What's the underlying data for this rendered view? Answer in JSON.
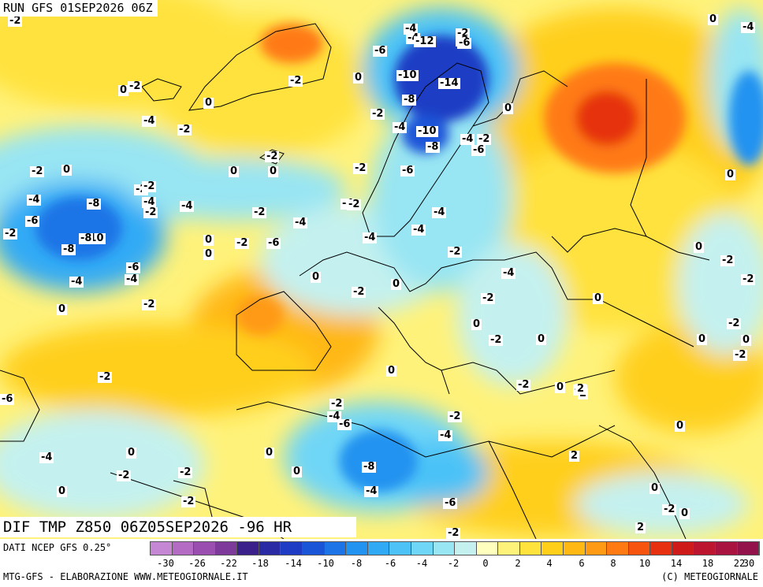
{
  "header": {
    "run_title": "RUN GFS 01SEP2026 06Z",
    "parameter_title": "DIF TMP Z850 06Z05SEP2026 -96 HR"
  },
  "footer": {
    "source": "DATI NCEP GFS 0.25°",
    "credit": "MTG-GFS - ELABORAZIONE WWW.METEOGIORNALE.IT",
    "copyright": "(C) METEOGIORNALE"
  },
  "legend": {
    "colors": [
      "#c586d3",
      "#b46bc4",
      "#9a4fb0",
      "#7d3a9a",
      "#3b1f8a",
      "#2a2aa5",
      "#1f3cc4",
      "#1a55d8",
      "#1c74e6",
      "#2293f0",
      "#31aaf5",
      "#4cc2f7",
      "#6fd6f7",
      "#98e5f3",
      "#c4f1ef",
      "#ffffbe",
      "#fff27a",
      "#ffe23c",
      "#ffcf1a",
      "#ffb814",
      "#ff9a14",
      "#ff7a12",
      "#f75410",
      "#e6300f",
      "#cf1a1a",
      "#bb1530",
      "#a81340",
      "#93124c"
    ],
    "tick_labels": [
      "-30",
      "-26",
      "-22",
      "-18",
      "-14",
      "-10",
      "-8",
      "-6",
      "-4",
      "-2",
      "0",
      "2",
      "4",
      "6",
      "8",
      "10",
      "14",
      "18",
      "22",
      "30"
    ]
  },
  "map": {
    "anomaly_labels": [
      {
        "t": "-2"
      },
      {
        "t": "0"
      },
      {
        "t": "0"
      },
      {
        "t": "-2"
      },
      {
        "t": "-2"
      },
      {
        "t": "0"
      },
      {
        "t": "-4"
      },
      {
        "t": "-2"
      },
      {
        "t": "-6"
      },
      {
        "t": "-4"
      },
      {
        "t": "-2"
      },
      {
        "t": "-6"
      },
      {
        "t": "-12"
      },
      {
        "t": "-10"
      },
      {
        "t": "-14"
      },
      {
        "t": "-8"
      },
      {
        "t": "-2"
      },
      {
        "t": "-4"
      },
      {
        "t": "-10"
      },
      {
        "t": "-4"
      },
      {
        "t": "-2"
      },
      {
        "t": "-8"
      },
      {
        "t": "-6"
      },
      {
        "t": "-6"
      },
      {
        "t": "0"
      },
      {
        "t": "-8"
      },
      {
        "t": "-4"
      },
      {
        "t": "-6"
      },
      {
        "t": "-4"
      },
      {
        "t": "-2"
      },
      {
        "t": "-2"
      },
      {
        "t": "0"
      },
      {
        "t": "-2"
      },
      {
        "t": "0"
      },
      {
        "t": "-2"
      },
      {
        "t": "-4"
      },
      {
        "t": "-8"
      },
      {
        "t": "-6"
      },
      {
        "t": "-2"
      },
      {
        "t": "-4"
      },
      {
        "t": "-2"
      },
      {
        "t": "-4"
      },
      {
        "t": "-10"
      },
      {
        "t": "-8"
      },
      {
        "t": "-2"
      },
      {
        "t": "-4"
      },
      {
        "t": "-4"
      },
      {
        "t": "-2"
      },
      {
        "t": "0"
      },
      {
        "t": "-6"
      },
      {
        "t": "-4"
      },
      {
        "t": "0"
      },
      {
        "t": "-2"
      },
      {
        "t": "0"
      },
      {
        "t": "-2"
      },
      {
        "t": "-4"
      },
      {
        "t": "-4"
      },
      {
        "t": "-4"
      },
      {
        "t": "-2"
      },
      {
        "t": "-4"
      },
      {
        "t": "0"
      },
      {
        "t": "0"
      },
      {
        "t": "-2"
      },
      {
        "t": "0"
      },
      {
        "t": "0"
      },
      {
        "t": "-2"
      },
      {
        "t": "0"
      },
      {
        "t": "-2"
      },
      {
        "t": "-2"
      },
      {
        "t": "0"
      },
      {
        "t": "-2"
      },
      {
        "t": "-2"
      },
      {
        "t": "-2"
      },
      {
        "t": "0"
      },
      {
        "t": "0"
      },
      {
        "t": "-2"
      },
      {
        "t": "0"
      },
      {
        "t": "-2"
      },
      {
        "t": "2"
      },
      {
        "t": "0"
      },
      {
        "t": "-2"
      },
      {
        "t": "-4"
      },
      {
        "t": "-6"
      },
      {
        "t": "-2"
      },
      {
        "t": "-4"
      },
      {
        "t": "-8"
      },
      {
        "t": "-4"
      },
      {
        "t": "-6"
      },
      {
        "t": "-2"
      },
      {
        "t": "0"
      },
      {
        "t": "-4"
      },
      {
        "t": "-2"
      },
      {
        "t": "-2"
      },
      {
        "t": "0"
      },
      {
        "t": "2"
      },
      {
        "t": "0"
      },
      {
        "t": "0"
      },
      {
        "t": "2"
      },
      {
        "t": "0"
      },
      {
        "t": "-2"
      },
      {
        "t": "-2"
      },
      {
        "t": "-6"
      },
      {
        "t": "-8"
      },
      {
        "t": "-4"
      },
      {
        "t": "-2"
      },
      {
        "t": "0"
      },
      {
        "t": "0"
      },
      {
        "t": "0"
      },
      {
        "t": "0"
      },
      {
        "t": "-2"
      },
      {
        "t": "0"
      },
      {
        "t": "0"
      },
      {
        "t": "0"
      },
      {
        "t": "-6"
      },
      {
        "t": "2"
      },
      {
        "t": "-2"
      }
    ]
  }
}
